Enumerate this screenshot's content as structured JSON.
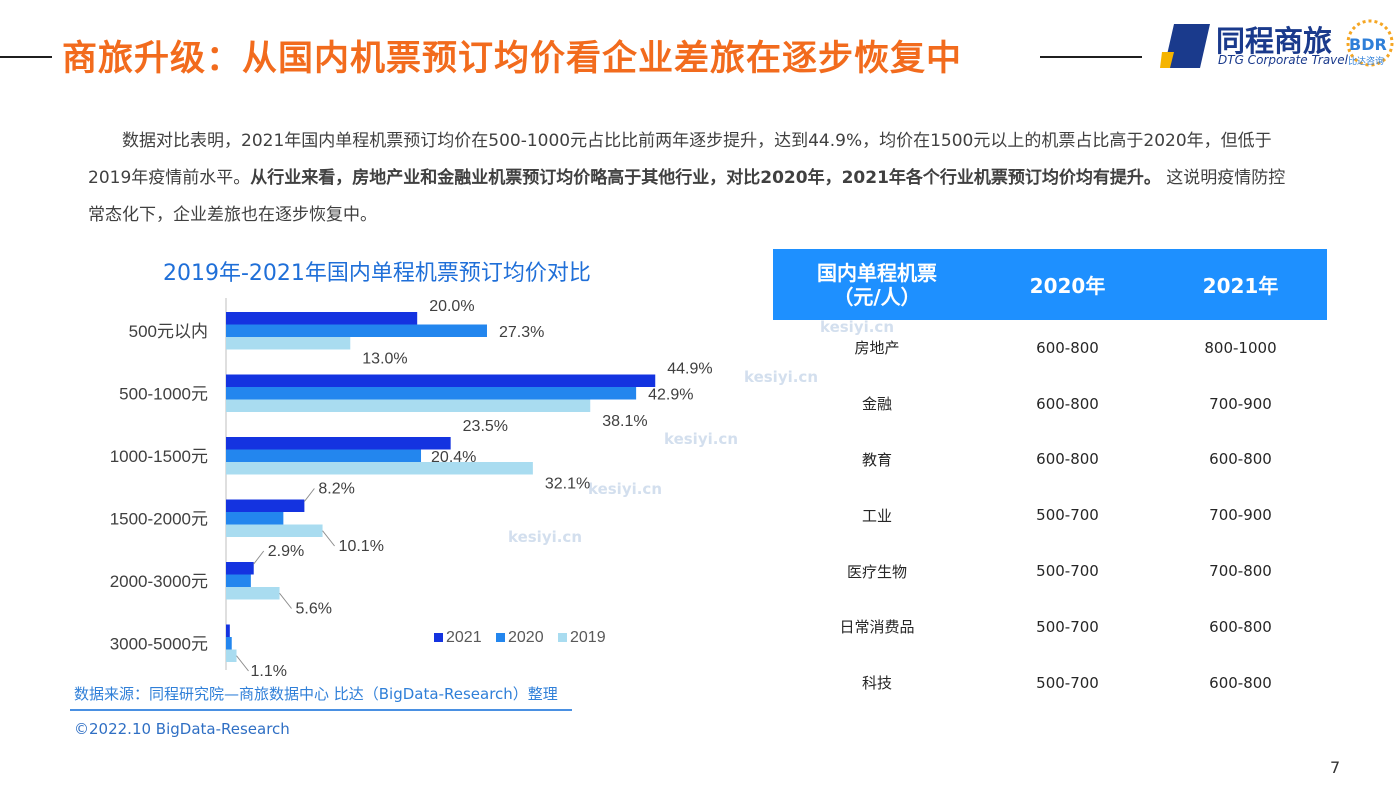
{
  "header": {
    "title": "商旅升级：从国内机票预订均价看企业差旅在逐步恢复中",
    "logo_cn": "同程商旅",
    "logo_en": "DTG Corporate Travel",
    "bdr_logo": "BDR",
    "bdr_sub": "比达咨询"
  },
  "intro": {
    "part1": "数据对比表明，2021年国内单程机票预订均价在500-1000元占比比前两年逐步提升，达到44.9%，均价在1500元以上的机票占比高于2020年，但低于2019年疫情前水平。",
    "part2_bold": "从行业来看，房地产业和金融业机票预订均价略高于其他行业，对比2020年，2021年各个行业机票预订均价均有提升。",
    "part3": " 这说明疫情防控常态化下，企业差旅也在逐步恢复中。"
  },
  "chart_title": "2019年-2021年国内单程机票预订均价对比",
  "chart_data": {
    "type": "bar",
    "orientation": "horizontal",
    "categories": [
      "500元以内",
      "500-1000元",
      "1000-1500元",
      "1500-2000元",
      "2000-3000元",
      "3000-5000元"
    ],
    "series": [
      {
        "name": "2021",
        "values": [
          20.0,
          44.9,
          23.5,
          8.2,
          2.9,
          0.4
        ],
        "labels": [
          "20.0%",
          "44.9%",
          "23.5%",
          "8.2%",
          "2.9%",
          ""
        ],
        "color": "#1433e0"
      },
      {
        "name": "2020",
        "values": [
          27.3,
          42.9,
          20.4,
          6.0,
          2.6,
          0.6
        ],
        "labels": [
          "27.3%",
          "42.9%",
          "20.4%",
          "",
          "",
          ""
        ],
        "color": "#2386ee"
      },
      {
        "name": "2019",
        "values": [
          13.0,
          38.1,
          32.1,
          10.1,
          5.6,
          1.1
        ],
        "labels": [
          "13.0%",
          "38.1%",
          "32.1%",
          "10.1%",
          "5.6%",
          "1.1%"
        ],
        "color": "#a9dcf0"
      }
    ],
    "xlim": [
      0,
      50
    ],
    "legend_position": "bottom-right",
    "grid": false
  },
  "source": "数据来源：同程研究院—商旅数据中心 比达（BigData-Research）整理",
  "copyright": "©2022.10 BigData-Research",
  "page_number": "7",
  "watermark": "kesiyi.cn",
  "table": {
    "headers": [
      "国内单程机票\n（元/人）",
      "2020年",
      "2021年"
    ],
    "rows": [
      [
        "房地产",
        "600-800",
        "800-1000"
      ],
      [
        "金融",
        "600-800",
        "700-900"
      ],
      [
        "教育",
        "600-800",
        "600-800"
      ],
      [
        "工业",
        "500-700",
        "700-900"
      ],
      [
        "医疗生物",
        "500-700",
        "700-800"
      ],
      [
        "日常消费品",
        "500-700",
        "600-800"
      ],
      [
        "科技",
        "500-700",
        "600-800"
      ]
    ]
  }
}
